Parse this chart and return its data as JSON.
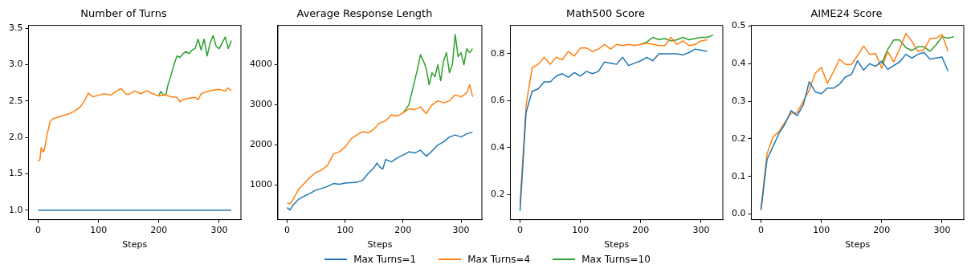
{
  "chart_data": [
    {
      "type": "line",
      "title": "Number of Turns",
      "xlabel": "Steps",
      "legend": "bottom",
      "xlim": [
        -16,
        336
      ],
      "xticks": [
        0,
        100,
        200,
        300
      ],
      "ylim": [
        0.87,
        3.54
      ],
      "yticks": [
        {
          "value": 1,
          "label": "1.0"
        },
        {
          "value": 1.5,
          "label": "1.5"
        },
        {
          "value": 2,
          "label": "2.0"
        },
        {
          "value": 2.5,
          "label": "2.5"
        },
        {
          "value": 3,
          "label": "3.0"
        },
        {
          "value": 3.5,
          "label": "3.5"
        }
      ],
      "series": [
        {
          "name": "Max Turns=1",
          "color": "#1f77b4",
          "x": [
            0,
            320
          ],
          "values": [
            1,
            1
          ]
        },
        {
          "name": "Max Turns=4",
          "color": "#ff7f0e",
          "x": [
            0,
            3,
            5,
            8,
            10,
            15,
            20,
            25,
            30,
            40,
            50,
            60,
            70,
            78,
            83,
            90,
            100,
            110,
            120,
            130,
            138,
            145,
            150,
            160,
            170,
            180,
            190,
            200,
            210,
            220,
            230,
            235,
            240,
            250,
            260,
            265,
            270,
            280,
            290,
            300,
            310,
            315,
            320
          ],
          "values": [
            1.67,
            1.7,
            1.86,
            1.8,
            1.82,
            2.05,
            2.22,
            2.26,
            2.27,
            2.3,
            2.32,
            2.36,
            2.42,
            2.52,
            2.61,
            2.56,
            2.58,
            2.6,
            2.58,
            2.64,
            2.67,
            2.6,
            2.59,
            2.64,
            2.6,
            2.64,
            2.6,
            2.57,
            2.59,
            2.56,
            2.55,
            2.49,
            2.52,
            2.54,
            2.55,
            2.52,
            2.6,
            2.63,
            2.65,
            2.66,
            2.64,
            2.68,
            2.64
          ]
        },
        {
          "name": "Max Turns=10",
          "color": "#2ca02c",
          "x": [
            200,
            203,
            208,
            212,
            215,
            220,
            225,
            230,
            235,
            240,
            245,
            250,
            255,
            260,
            265,
            270,
            275,
            280,
            285,
            290,
            295,
            300,
            305,
            310,
            315,
            320
          ],
          "values": [
            2.58,
            2.63,
            2.58,
            2.6,
            2.72,
            2.85,
            3.0,
            3.12,
            3.1,
            3.15,
            3.18,
            3.15,
            3.2,
            3.22,
            3.35,
            3.2,
            3.35,
            3.12,
            3.3,
            3.4,
            3.25,
            3.22,
            3.3,
            3.38,
            3.22,
            3.33
          ]
        }
      ]
    },
    {
      "type": "line",
      "title": "Average Response Length",
      "xlabel": "Steps",
      "xlim": [
        -16,
        336
      ],
      "xticks": [
        0,
        100,
        200,
        300
      ],
      "ylim": [
        140,
        4980
      ],
      "yticks": [
        1000,
        2000,
        3000,
        4000
      ],
      "series": [
        {
          "color": "#1f77b4",
          "x": [
            0,
            5,
            10,
            20,
            30,
            40,
            50,
            60,
            70,
            80,
            90,
            100,
            110,
            120,
            130,
            140,
            150,
            155,
            160,
            165,
            170,
            180,
            190,
            200,
            210,
            220,
            230,
            240,
            250,
            260,
            270,
            280,
            290,
            300,
            310,
            320
          ],
          "values": [
            440,
            380,
            500,
            650,
            730,
            800,
            880,
            920,
            970,
            1040,
            1020,
            1050,
            1060,
            1070,
            1120,
            1290,
            1440,
            1550,
            1450,
            1400,
            1640,
            1580,
            1680,
            1750,
            1830,
            1800,
            1870,
            1720,
            1850,
            2000,
            2080,
            2200,
            2250,
            2200,
            2280,
            2320
          ]
        },
        {
          "color": "#ff7f0e",
          "x": [
            0,
            5,
            10,
            20,
            30,
            40,
            50,
            60,
            70,
            80,
            90,
            100,
            110,
            120,
            130,
            140,
            150,
            160,
            170,
            180,
            190,
            200,
            210,
            220,
            230,
            240,
            250,
            260,
            270,
            280,
            290,
            300,
            310,
            315,
            320
          ],
          "values": [
            560,
            530,
            640,
            900,
            1050,
            1200,
            1320,
            1380,
            1500,
            1780,
            1830,
            1950,
            2150,
            2250,
            2330,
            2300,
            2400,
            2550,
            2600,
            2750,
            2720,
            2800,
            2900,
            2880,
            2950,
            2780,
            3000,
            3100,
            3050,
            3100,
            3250,
            3200,
            3300,
            3500,
            3200
          ]
        },
        {
          "color": "#2ca02c",
          "x": [
            200,
            205,
            210,
            215,
            220,
            225,
            230,
            235,
            240,
            245,
            250,
            255,
            260,
            265,
            270,
            275,
            280,
            285,
            290,
            295,
            300,
            305,
            310,
            315,
            320
          ],
          "values": [
            2800,
            2900,
            3000,
            3300,
            3600,
            3900,
            4250,
            4100,
            3900,
            3500,
            3800,
            3700,
            4000,
            3600,
            4100,
            4300,
            3800,
            4000,
            4750,
            4200,
            4300,
            4000,
            4400,
            4300,
            4400
          ]
        }
      ]
    },
    {
      "type": "line",
      "title": "Math500 Score",
      "xlabel": "Steps",
      "xlim": [
        -16,
        336
      ],
      "xticks": [
        0,
        100,
        200,
        300
      ],
      "ylim": [
        0.093,
        0.921
      ],
      "yticks": [
        0.2,
        0.4,
        0.6,
        0.8
      ],
      "series": [
        {
          "color": "#1f77b4",
          "x": [
            0,
            10,
            20,
            30,
            40,
            50,
            60,
            70,
            80,
            90,
            100,
            110,
            120,
            130,
            140,
            150,
            160,
            170,
            180,
            190,
            200,
            210,
            220,
            230,
            240,
            250,
            260,
            270,
            280,
            290,
            300,
            310
          ],
          "values": [
            0.13,
            0.55,
            0.64,
            0.65,
            0.68,
            0.68,
            0.705,
            0.715,
            0.7,
            0.72,
            0.705,
            0.725,
            0.715,
            0.725,
            0.765,
            0.76,
            0.755,
            0.785,
            0.75,
            0.76,
            0.77,
            0.785,
            0.77,
            0.8,
            0.8,
            0.8,
            0.8,
            0.795,
            0.805,
            0.82,
            0.815,
            0.81
          ]
        },
        {
          "color": "#ff7f0e",
          "x": [
            0,
            10,
            20,
            30,
            40,
            50,
            60,
            70,
            80,
            90,
            100,
            110,
            120,
            130,
            140,
            150,
            160,
            170,
            180,
            190,
            200,
            210,
            220,
            230,
            240,
            250,
            260,
            270,
            280,
            290,
            300,
            310
          ],
          "values": [
            0.16,
            0.58,
            0.74,
            0.755,
            0.785,
            0.755,
            0.785,
            0.775,
            0.81,
            0.79,
            0.825,
            0.825,
            0.81,
            0.82,
            0.84,
            0.82,
            0.84,
            0.835,
            0.84,
            0.835,
            0.84,
            0.845,
            0.84,
            0.835,
            0.835,
            0.87,
            0.84,
            0.855,
            0.835,
            0.84,
            0.855,
            0.86
          ]
        },
        {
          "color": "#2ca02c",
          "x": [
            200,
            210,
            220,
            230,
            240,
            250,
            260,
            270,
            280,
            290,
            300,
            310,
            320
          ],
          "values": [
            0.84,
            0.85,
            0.87,
            0.86,
            0.865,
            0.855,
            0.86,
            0.87,
            0.86,
            0.865,
            0.87,
            0.87,
            0.88
          ]
        }
      ]
    },
    {
      "type": "line",
      "title": "AIME24 Score",
      "xlabel": "Steps",
      "xlim": [
        -16,
        336
      ],
      "xticks": [
        0,
        100,
        200,
        300
      ],
      "ylim": [
        -0.015,
        0.502
      ],
      "yticks": [
        {
          "value": 0,
          "label": "0.0"
        },
        0.1,
        0.2,
        0.3,
        0.4,
        0.5
      ],
      "series": [
        {
          "color": "#1f77b4",
          "x": [
            0,
            10,
            20,
            30,
            40,
            50,
            60,
            70,
            80,
            90,
            100,
            110,
            120,
            130,
            140,
            150,
            160,
            170,
            180,
            190,
            200,
            210,
            220,
            230,
            240,
            250,
            260,
            270,
            280,
            290,
            300,
            310
          ],
          "values": [
            0.01,
            0.145,
            0.18,
            0.215,
            0.24,
            0.275,
            0.262,
            0.29,
            0.352,
            0.325,
            0.32,
            0.335,
            0.335,
            0.345,
            0.365,
            0.372,
            0.408,
            0.383,
            0.4,
            0.393,
            0.407,
            0.385,
            0.395,
            0.405,
            0.425,
            0.415,
            0.425,
            0.43,
            0.412,
            0.415,
            0.418,
            0.38
          ]
        },
        {
          "color": "#ff7f0e",
          "x": [
            0,
            10,
            20,
            30,
            40,
            50,
            60,
            70,
            80,
            90,
            100,
            110,
            120,
            130,
            140,
            150,
            160,
            170,
            180,
            190,
            200,
            210,
            220,
            230,
            240,
            250,
            260,
            270,
            280,
            290,
            300,
            310
          ],
          "values": [
            0.015,
            0.16,
            0.205,
            0.22,
            0.245,
            0.268,
            0.27,
            0.3,
            0.33,
            0.375,
            0.39,
            0.348,
            0.378,
            0.412,
            0.398,
            0.398,
            0.422,
            0.447,
            0.425,
            0.427,
            0.388,
            0.432,
            0.405,
            0.44,
            0.48,
            0.46,
            0.433,
            0.437,
            0.467,
            0.468,
            0.478,
            0.433
          ]
        },
        {
          "color": "#2ca02c",
          "x": [
            200,
            210,
            220,
            230,
            240,
            250,
            260,
            270,
            280,
            290,
            300,
            310,
            320
          ],
          "values": [
            0.4,
            0.438,
            0.463,
            0.463,
            0.443,
            0.435,
            0.445,
            0.445,
            0.433,
            0.45,
            0.472,
            0.468,
            0.472
          ]
        }
      ]
    }
  ]
}
